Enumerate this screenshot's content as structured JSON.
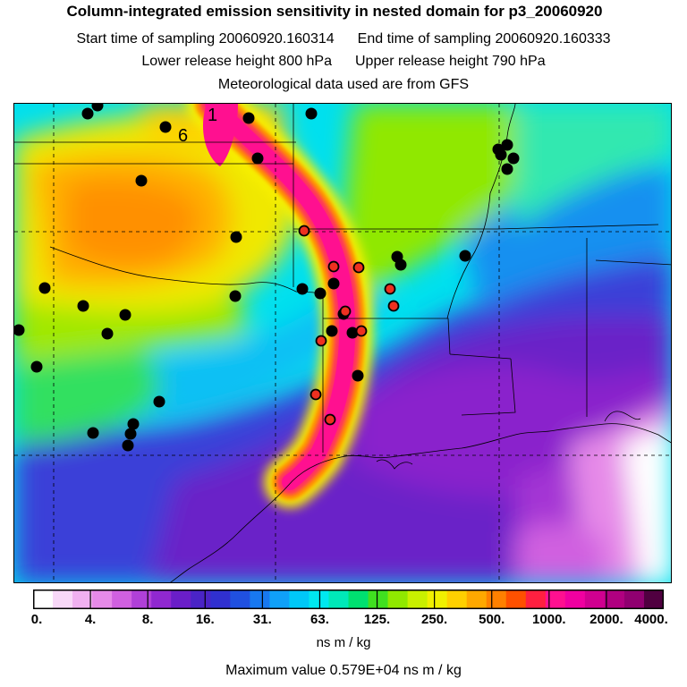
{
  "header": {
    "title": "Column-integrated emission sensitivity in nested domain for p3_20060920",
    "start_label": "Start time of sampling 20060920.160314",
    "end_label": "End time of sampling 20060920.160333",
    "lower_label": "Lower release height  800 hPa",
    "upper_label": "Upper release height  790 hPa",
    "met_label": "Meteorological data used are from GFS"
  },
  "map": {
    "labels": {
      "day1": "1",
      "day6": "6"
    }
  },
  "colorbar": {
    "colors": [
      "#ffffff",
      "#f8d8f8",
      "#f0b0f0",
      "#e68ae8",
      "#d060e0",
      "#b040d8",
      "#9028d0",
      "#6a1ec8",
      "#4a24c6",
      "#3030d0",
      "#2050e0",
      "#1878f0",
      "#10a0f8",
      "#00c8f8",
      "#00e8f0",
      "#00e8b8",
      "#00e070",
      "#40e020",
      "#90e800",
      "#c8f000",
      "#f0f000",
      "#ffd000",
      "#ffa800",
      "#ff8000",
      "#ff5000",
      "#ff2040",
      "#ff1090",
      "#f000a0",
      "#d00090",
      "#b00080",
      "#900070",
      "#500040"
    ],
    "tick_labels": [
      "0.",
      "4.",
      "8.",
      "16.",
      "31.",
      "63.",
      "125.",
      "250.",
      "500.",
      "1000.",
      "2000.",
      "4000."
    ],
    "units": "ns m / kg"
  },
  "footer": {
    "max_value": "Maximum value  0.579E+04 ns m / kg"
  }
}
